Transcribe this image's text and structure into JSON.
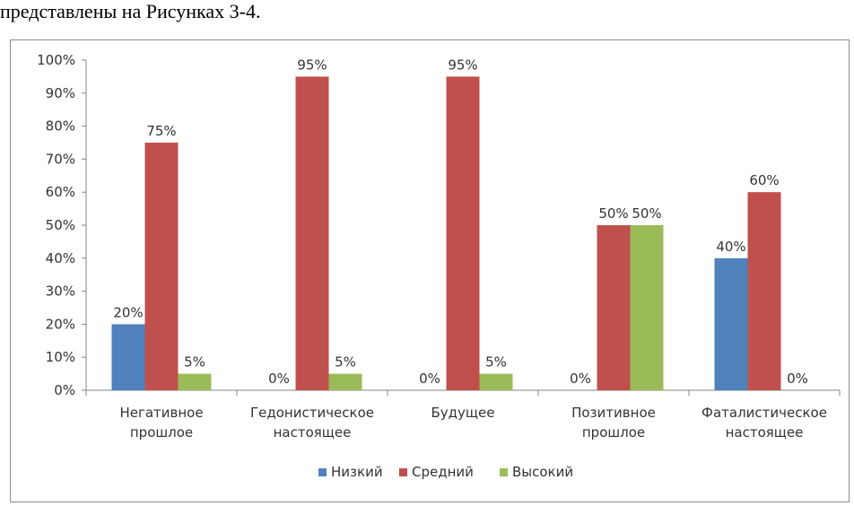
{
  "intro_text": "представлены на Рисунках 3-4.",
  "chart_data": {
    "type": "bar",
    "title": "",
    "xlabel": "",
    "ylabel": "",
    "ylim": [
      0,
      100
    ],
    "y_ticks": [
      "0%",
      "10%",
      "20%",
      "30%",
      "40%",
      "50%",
      "60%",
      "70%",
      "80%",
      "90%",
      "100%"
    ],
    "categories": [
      [
        "Негативное",
        "прошлое"
      ],
      [
        "Гедонистическое",
        "настоящее"
      ],
      [
        "Будущее"
      ],
      [
        "Позитивное",
        "прошлое"
      ],
      [
        "Фаталистическое",
        "настоящее"
      ]
    ],
    "series": [
      {
        "name": "Низкий",
        "color": "#4f81bd",
        "values": [
          20,
          0,
          0,
          0,
          40
        ],
        "labels": [
          "20%",
          "0%",
          "0%",
          "0%",
          "40%"
        ]
      },
      {
        "name": "Средний",
        "color": "#c0504d",
        "values": [
          75,
          95,
          95,
          50,
          60
        ],
        "labels": [
          "75%",
          "95%",
          "95%",
          "50%",
          "60%"
        ]
      },
      {
        "name": "Высокий",
        "color": "#9bbb59",
        "values": [
          5,
          5,
          5,
          50,
          0
        ],
        "labels": [
          "5%",
          "5%",
          "5%",
          "50%",
          "0%"
        ]
      }
    ],
    "grid": false,
    "legend_position": "bottom"
  }
}
